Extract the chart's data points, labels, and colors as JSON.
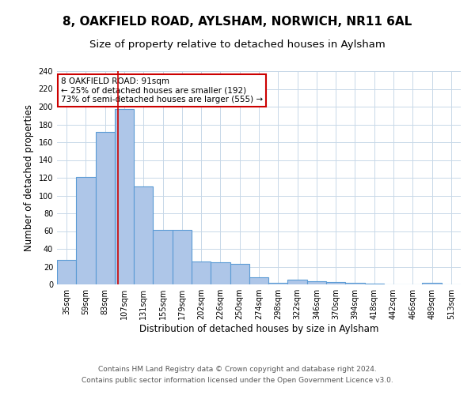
{
  "title1": "8, OAKFIELD ROAD, AYLSHAM, NORWICH, NR11 6AL",
  "title2": "Size of property relative to detached houses in Aylsham",
  "xlabel": "Distribution of detached houses by size in Aylsham",
  "ylabel": "Number of detached properties",
  "categories": [
    "35sqm",
    "59sqm",
    "83sqm",
    "107sqm",
    "131sqm",
    "155sqm",
    "179sqm",
    "202sqm",
    "226sqm",
    "250sqm",
    "274sqm",
    "298sqm",
    "322sqm",
    "346sqm",
    "370sqm",
    "394sqm",
    "418sqm",
    "442sqm",
    "466sqm",
    "489sqm",
    "513sqm"
  ],
  "values": [
    28,
    121,
    172,
    197,
    110,
    61,
    61,
    26,
    25,
    23,
    8,
    2,
    5,
    4,
    3,
    2,
    1,
    0,
    0,
    2,
    0
  ],
  "bar_color": "#aec6e8",
  "bar_edge_color": "#5b9bd5",
  "vline_x": 2.67,
  "vline_color": "#cc0000",
  "annotation_text": "8 OAKFIELD ROAD: 91sqm\n← 25% of detached houses are smaller (192)\n73% of semi-detached houses are larger (555) →",
  "annotation_box_color": "#ffffff",
  "annotation_box_edge_color": "#cc0000",
  "ylim": [
    0,
    240
  ],
  "yticks": [
    0,
    20,
    40,
    60,
    80,
    100,
    120,
    140,
    160,
    180,
    200,
    220,
    240
  ],
  "footer1": "Contains HM Land Registry data © Crown copyright and database right 2024.",
  "footer2": "Contains public sector information licensed under the Open Government Licence v3.0.",
  "bg_color": "#ffffff",
  "grid_color": "#c8d8e8",
  "title1_fontsize": 11,
  "title2_fontsize": 9.5,
  "axis_label_fontsize": 8.5,
  "tick_fontsize": 7,
  "footer_fontsize": 6.5
}
